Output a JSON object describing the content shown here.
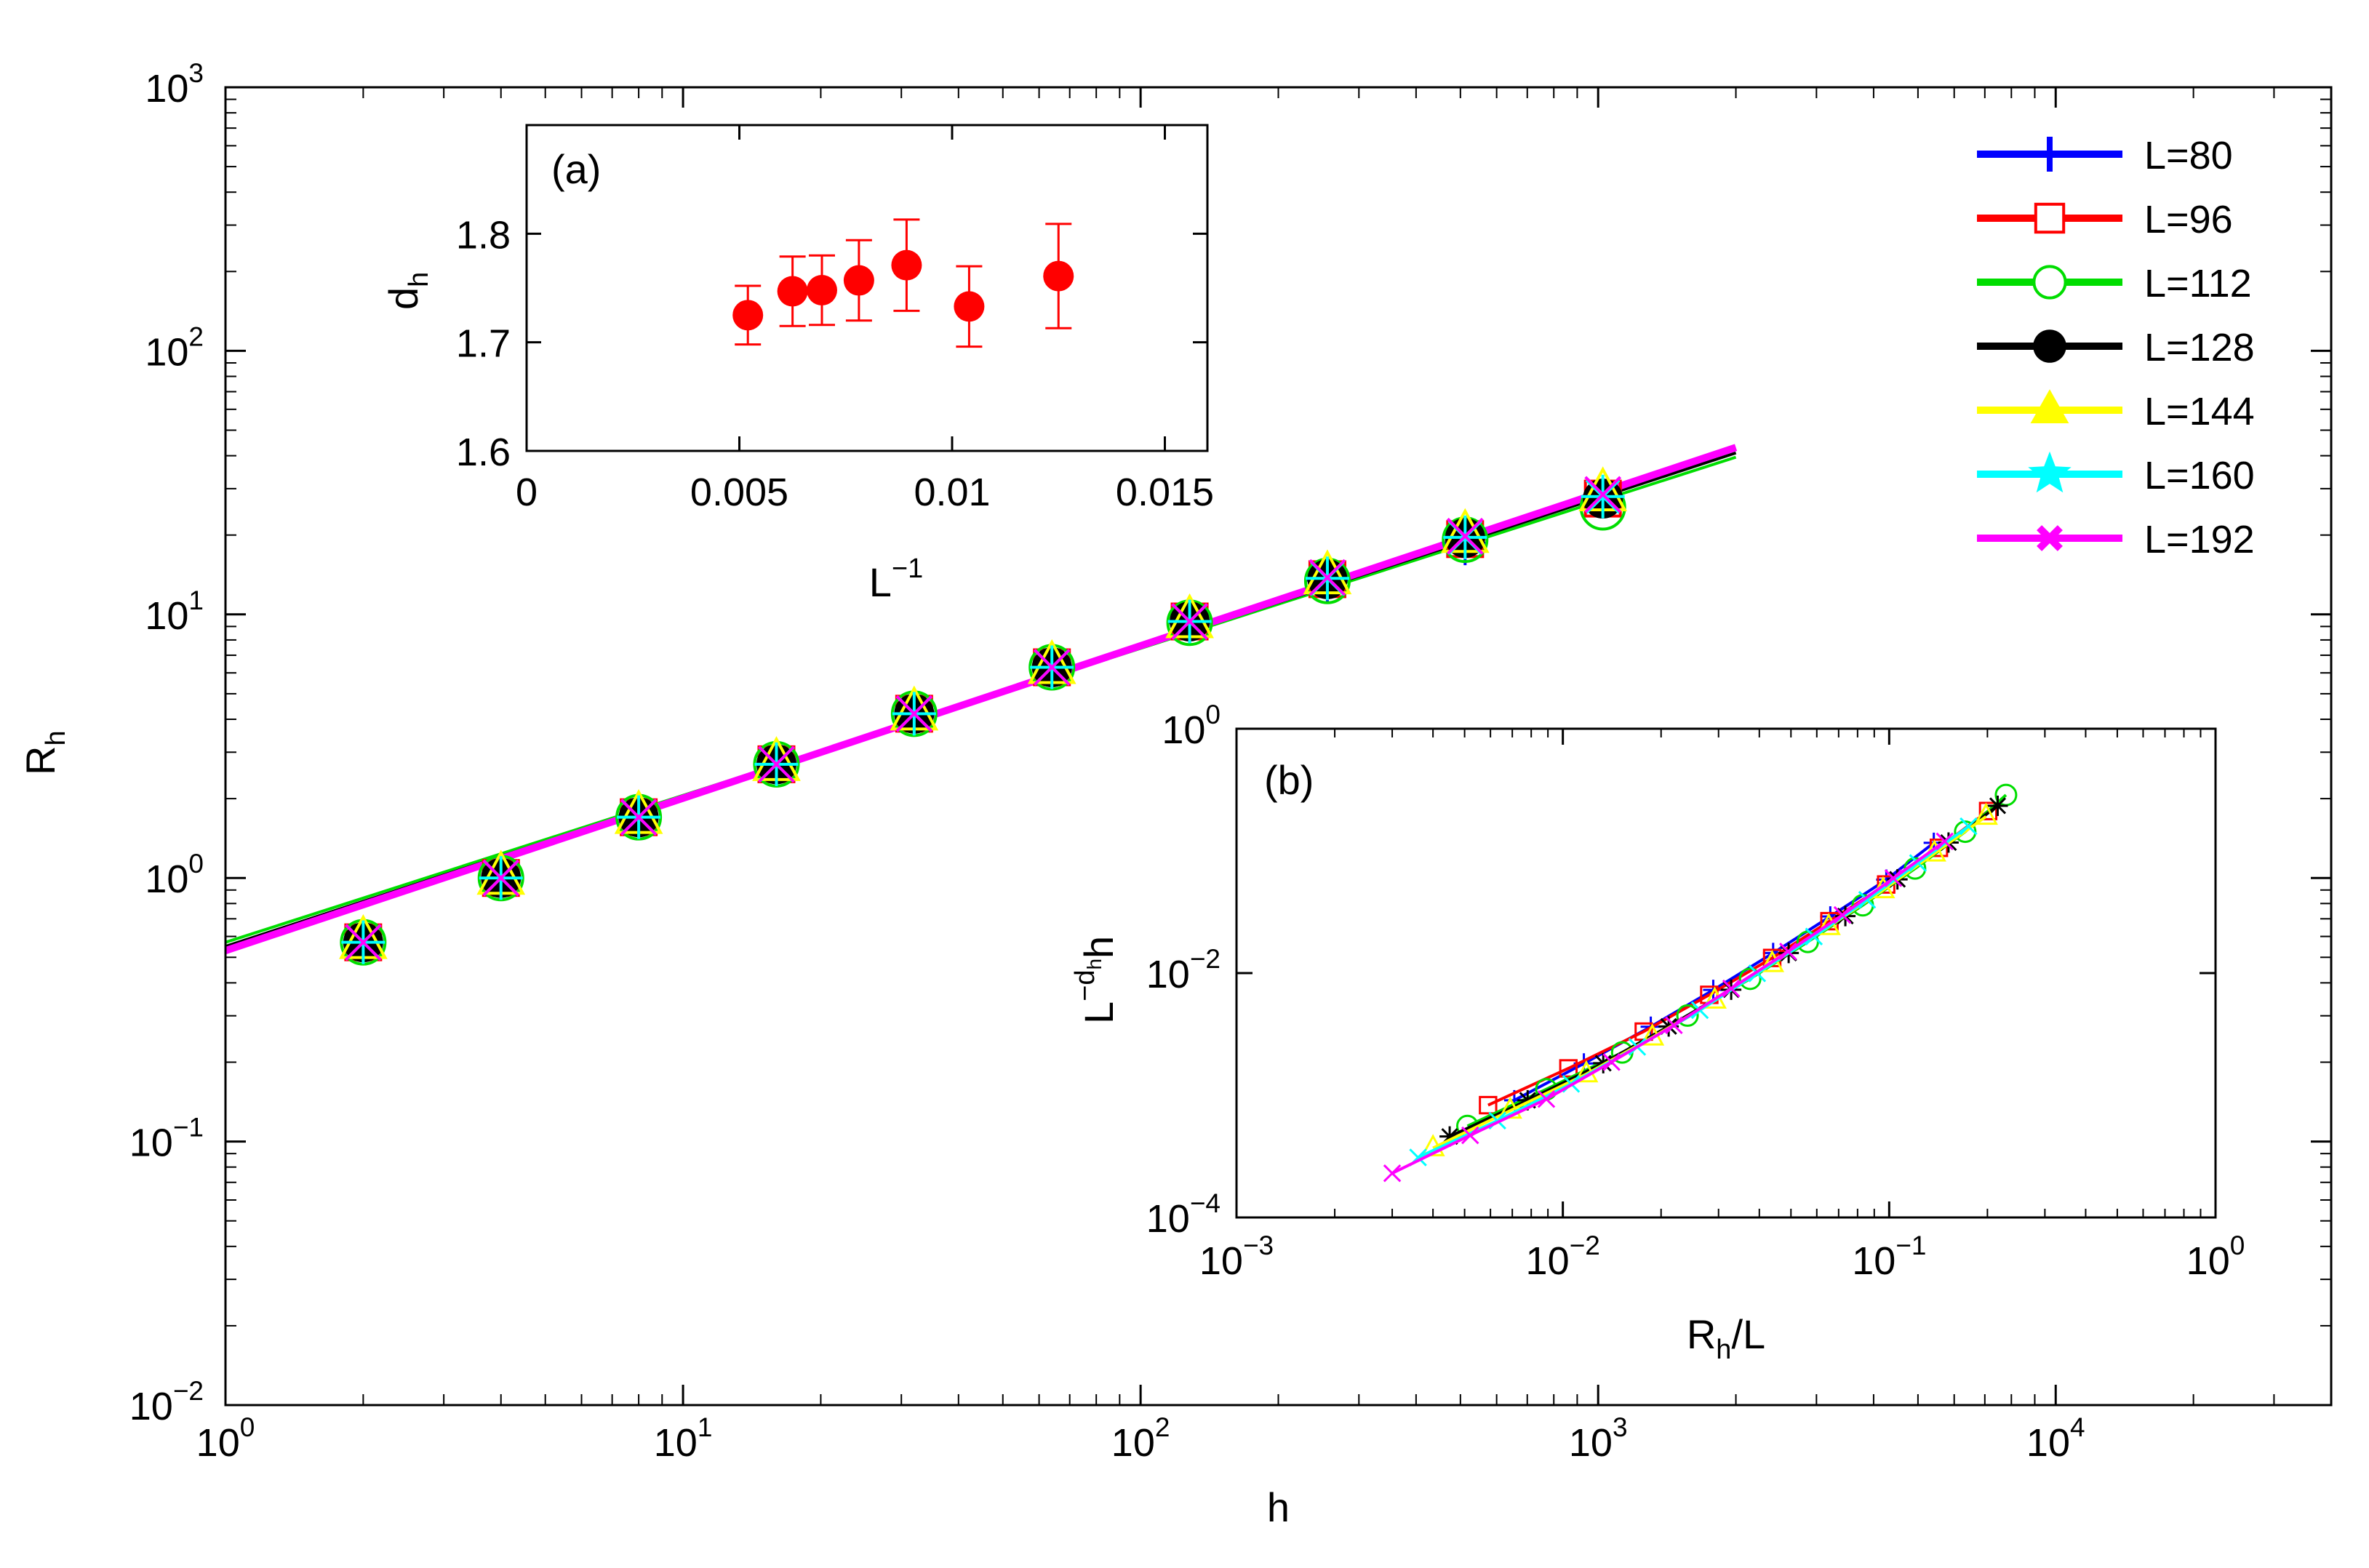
{
  "chart_data": [
    {
      "id": "main",
      "type": "scatter",
      "xscale": "log",
      "yscale": "log",
      "xlim": [
        1,
        40000
      ],
      "ylim": [
        0.01,
        1000
      ],
      "x_ticks": [
        {
          "value": 1,
          "base": "10",
          "exp": "0"
        },
        {
          "value": 10,
          "base": "10",
          "exp": "1"
        },
        {
          "value": 100,
          "base": "10",
          "exp": "2"
        },
        {
          "value": 1000,
          "base": "10",
          "exp": "3"
        },
        {
          "value": 10000,
          "base": "10",
          "exp": "4"
        }
      ],
      "y_ticks": [
        {
          "value": 0.01,
          "base": "10",
          "exp": "−2"
        },
        {
          "value": 0.1,
          "base": "10",
          "exp": "−1"
        },
        {
          "value": 1,
          "base": "10",
          "exp": "0"
        },
        {
          "value": 10,
          "base": "10",
          "exp": "1"
        },
        {
          "value": 100,
          "base": "10",
          "exp": "2"
        },
        {
          "value": 1000,
          "base": "10",
          "exp": "3"
        }
      ],
      "xlabel": "h",
      "ylabel": {
        "main": "R",
        "sub": "h"
      },
      "legend_position": "top-right",
      "series": [
        {
          "name": "L=80",
          "label": "L=80",
          "color": "#0000ff",
          "marker": "plus",
          "fit_end": 2000,
          "x": [
            2,
            4,
            8,
            16,
            32,
            64,
            128,
            256,
            512
          ],
          "y": [
            0.57,
            1.0,
            1.7,
            2.7,
            4.2,
            6.3,
            9.3,
            13.5,
            18.6
          ]
        },
        {
          "name": "L=96",
          "label": "L=96",
          "color": "#ff0000",
          "marker": "square",
          "fit_end": 2000,
          "x": [
            2,
            4,
            8,
            16,
            32,
            64,
            128,
            256,
            512,
            1024
          ],
          "y": [
            0.57,
            1.0,
            1.7,
            2.7,
            4.2,
            6.3,
            9.4,
            13.6,
            19.3,
            27.5
          ]
        },
        {
          "name": "L=112",
          "label": "L=112",
          "color": "#00dd00",
          "marker": "circle",
          "fit_end": 2000,
          "x": [
            2,
            4,
            8,
            16,
            32,
            64,
            128,
            256,
            512,
            1024
          ],
          "y": [
            0.57,
            1.0,
            1.7,
            2.7,
            4.2,
            6.3,
            9.3,
            13.4,
            19.2,
            25.5
          ]
        },
        {
          "name": "L=128",
          "label": "L=128",
          "color": "#000000",
          "marker": "dot",
          "fit_end": 2000,
          "x": [
            2,
            4,
            8,
            16,
            32,
            64,
            128,
            256,
            512,
            1024
          ],
          "y": [
            0.57,
            1.0,
            1.7,
            2.7,
            4.2,
            6.3,
            9.4,
            13.6,
            19.5,
            27.5
          ]
        },
        {
          "name": "L=144",
          "label": "L=144",
          "color": "#ffff00",
          "marker": "triangle",
          "fit_end": 2000,
          "x": [
            2,
            4,
            8,
            16,
            32,
            64,
            128,
            256,
            512,
            1024
          ],
          "y": [
            0.57,
            1.0,
            1.7,
            2.7,
            4.2,
            6.3,
            9.4,
            13.8,
            19.8,
            28.5
          ]
        },
        {
          "name": "L=160",
          "label": "L=160",
          "color": "#00ffff",
          "marker": "star",
          "fit_end": 2000,
          "x": [
            2,
            4,
            8,
            16,
            32,
            64,
            128,
            256,
            512,
            1024
          ],
          "y": [
            0.57,
            1.0,
            1.7,
            2.7,
            4.2,
            6.3,
            9.4,
            13.7,
            19.6,
            28.0
          ]
        },
        {
          "name": "L=192",
          "label": "L=192",
          "color": "#ff00ff",
          "marker": "cross",
          "fit_end": 2000,
          "x": [
            2,
            4,
            8,
            16,
            32,
            64,
            128,
            256,
            512,
            1024
          ],
          "y": [
            0.57,
            1.0,
            1.7,
            2.7,
            4.2,
            6.3,
            9.4,
            13.8,
            19.8,
            28.5
          ]
        }
      ],
      "fits": [
        {
          "color": "#00dd00",
          "from": [
            1,
            0.57
          ],
          "to": [
            2000,
            39.5
          ]
        },
        {
          "color": "#000000",
          "from": [
            1,
            0.55
          ],
          "to": [
            2000,
            41.0
          ]
        },
        {
          "color": "#ff00ff",
          "from": [
            1,
            0.53
          ],
          "to": [
            2000,
            43.0
          ]
        }
      ]
    },
    {
      "id": "inset_a",
      "type": "scatter",
      "panel_label": "(a)",
      "xlim": [
        0,
        0.016
      ],
      "ylim": [
        1.6,
        1.9
      ],
      "x_ticks": [
        "0",
        "0.005",
        "0.01",
        "0.015"
      ],
      "x_tick_values": [
        0,
        0.005,
        0.01,
        0.015
      ],
      "y_ticks": [
        "1.6",
        "1.7",
        "1.8"
      ],
      "y_tick_values": [
        1.6,
        1.7,
        1.8
      ],
      "xlabel": {
        "main": "L",
        "sup": "−1"
      },
      "ylabel": {
        "main": "d",
        "sub": "h"
      },
      "marker_color": "#ff0000",
      "points": [
        {
          "x": 0.0052,
          "y": 1.725,
          "err": 0.027
        },
        {
          "x": 0.00625,
          "y": 1.747,
          "err": 0.032
        },
        {
          "x": 0.00694,
          "y": 1.748,
          "err": 0.032
        },
        {
          "x": 0.00781,
          "y": 1.757,
          "err": 0.037
        },
        {
          "x": 0.00893,
          "y": 1.771,
          "err": 0.042
        },
        {
          "x": 0.0104,
          "y": 1.733,
          "err": 0.037
        },
        {
          "x": 0.0125,
          "y": 1.761,
          "err": 0.048
        }
      ]
    },
    {
      "id": "inset_b",
      "type": "line",
      "panel_label": "(b)",
      "xscale": "log",
      "yscale": "log",
      "xlim": [
        0.001,
        1
      ],
      "ylim": [
        0.0001,
        1
      ],
      "x_ticks": [
        {
          "value": 0.001,
          "base": "10",
          "exp": "−3"
        },
        {
          "value": 0.01,
          "base": "10",
          "exp": "−2"
        },
        {
          "value": 0.1,
          "base": "10",
          "exp": "−1"
        },
        {
          "value": 1,
          "base": "10",
          "exp": "0"
        }
      ],
      "y_ticks": [
        {
          "value": 0.0001,
          "base": "10",
          "exp": "−4"
        },
        {
          "value": 0.01,
          "base": "10",
          "exp": "−2"
        },
        {
          "value": 1,
          "base": "10",
          "exp": "0"
        }
      ],
      "xlabel": {
        "main": "R",
        "sub": "h",
        "tail": "/L"
      },
      "ylabel": {
        "pre": "L",
        "sup": "−d",
        "supsub": "h",
        "tail": "h"
      },
      "series": [
        {
          "name": "L=80",
          "color": "#0000ff",
          "marker": "plus",
          "x": [
            0.0071,
            0.0116,
            0.0186,
            0.0289,
            0.0441,
            0.066,
            0.098,
            0.137
          ],
          "y": [
            0.00091,
            0.00182,
            0.00364,
            0.00728,
            0.0146,
            0.0291,
            0.0582,
            0.1165
          ]
        },
        {
          "name": "L=96",
          "color": "#ff0000",
          "marker": "square",
          "x": [
            0.0059,
            0.0104,
            0.0177,
            0.0281,
            0.0438,
            0.0656,
            0.0979,
            0.142,
            0.201
          ],
          "y": [
            0.00083,
            0.00166,
            0.00332,
            0.00664,
            0.0133,
            0.0266,
            0.0531,
            0.106,
            0.212
          ]
        },
        {
          "name": "L=112",
          "color": "#00dd00",
          "marker": "circle",
          "x": [
            0.0051,
            0.0089,
            0.0152,
            0.0241,
            0.0375,
            0.0563,
            0.083,
            0.12,
            0.171,
            0.228
          ],
          "y": [
            0.00056,
            0.00112,
            0.00224,
            0.00449,
            0.00898,
            0.018,
            0.0359,
            0.0718,
            0.1436,
            0.287
          ]
        },
        {
          "name": "L=128",
          "color": "#000000",
          "marker": "star",
          "x": [
            0.0045,
            0.0078,
            0.0133,
            0.0211,
            0.0328,
            0.0492,
            0.0734,
            0.106,
            0.152,
            0.215
          ],
          "y": [
            0.00046,
            0.00091,
            0.00183,
            0.00366,
            0.00731,
            0.0146,
            0.0293,
            0.0585,
            0.117,
            0.234
          ]
        },
        {
          "name": "L=144",
          "color": "#ffff00",
          "marker": "triangle",
          "x": [
            0.004,
            0.0069,
            0.0118,
            0.0188,
            0.0292,
            0.0438,
            0.0653,
            0.0958,
            0.1375,
            0.198
          ],
          "y": [
            0.00037,
            0.00075,
            0.00149,
            0.00298,
            0.00597,
            0.0119,
            0.0239,
            0.0478,
            0.0955,
            0.191
          ]
        },
        {
          "name": "L=160",
          "color": "#00ffff",
          "marker": "cross",
          "x": [
            0.0036,
            0.0063,
            0.0106,
            0.0169,
            0.0263,
            0.0394,
            0.0588,
            0.0856,
            0.1225,
            0.175
          ],
          "y": [
            0.00031,
            0.00062,
            0.00124,
            0.00249,
            0.00497,
            0.00995,
            0.0199,
            0.0398,
            0.0796,
            0.159
          ]
        },
        {
          "name": "L=192",
          "color": "#ff00ff",
          "marker": "cross",
          "x": [
            0.003,
            0.0052,
            0.0089,
            0.0141,
            0.0219,
            0.0328,
            0.049,
            0.0719,
            0.103,
            0.148
          ],
          "y": [
            0.00023,
            0.00047,
            0.00093,
            0.00187,
            0.00374,
            0.00748,
            0.015,
            0.0299,
            0.0598,
            0.1197
          ]
        }
      ]
    }
  ]
}
